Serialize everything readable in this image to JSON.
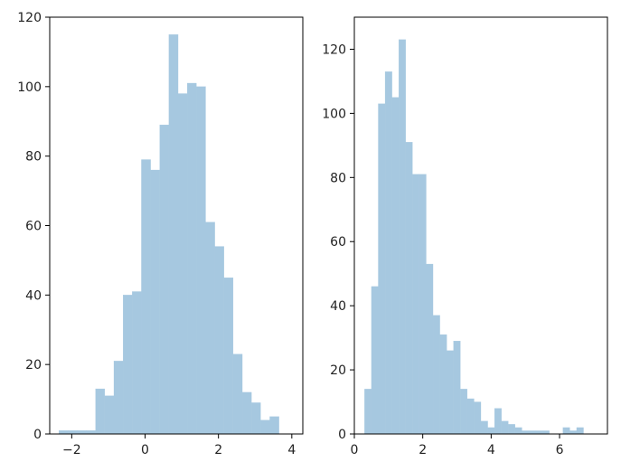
{
  "style": {
    "bar_color": "#a6c8e0",
    "bar_edge": "#a6c8e0",
    "axis_color": "#000000",
    "text_color": "#222222"
  },
  "chart_data": [
    {
      "type": "bar",
      "title": "",
      "xlabel": "",
      "ylabel": "",
      "xlim": [
        -2.6,
        4.3
      ],
      "ylim": [
        0,
        120
      ],
      "grid": false,
      "xticks": [
        -2,
        0,
        2,
        4
      ],
      "yticks": [
        0,
        20,
        40,
        60,
        80,
        100,
        120
      ],
      "bin_edges": [
        -2.35,
        -2.1,
        -1.85,
        -1.6,
        -1.35,
        -1.1,
        -0.85,
        -0.6,
        -0.35,
        -0.1,
        0.15,
        0.4,
        0.65,
        0.9,
        1.15,
        1.4,
        1.65,
        1.9,
        2.15,
        2.4,
        2.65,
        2.9,
        3.15,
        3.4,
        3.65,
        3.9
      ],
      "values": [
        1,
        1,
        1,
        1,
        13,
        11,
        21,
        40,
        41,
        79,
        76,
        89,
        115,
        98,
        101,
        100,
        61,
        54,
        45,
        23,
        12,
        9,
        4,
        5,
        0
      ]
    },
    {
      "type": "bar",
      "title": "",
      "xlabel": "",
      "ylabel": "",
      "xlim": [
        0,
        7.4
      ],
      "ylim": [
        0,
        130
      ],
      "grid": false,
      "xticks": [
        0,
        2,
        4,
        6
      ],
      "yticks": [
        0,
        20,
        40,
        60,
        80,
        100,
        120
      ],
      "bin_edges": [
        0.3,
        0.5,
        0.7,
        0.9,
        1.1,
        1.3,
        1.5,
        1.7,
        1.9,
        2.1,
        2.3,
        2.5,
        2.7,
        2.9,
        3.1,
        3.3,
        3.5,
        3.7,
        3.9,
        4.1,
        4.3,
        4.5,
        4.7,
        4.9,
        5.1,
        5.3,
        5.5,
        5.7,
        5.9,
        6.1,
        6.3,
        6.5,
        6.7,
        6.9,
        7.1
      ],
      "values": [
        14,
        46,
        103,
        113,
        105,
        123,
        91,
        81,
        81,
        53,
        37,
        31,
        26,
        29,
        14,
        11,
        10,
        4,
        2,
        8,
        4,
        3,
        2,
        1,
        1,
        1,
        1,
        0,
        0,
        2,
        1,
        2,
        0,
        0
      ]
    }
  ]
}
